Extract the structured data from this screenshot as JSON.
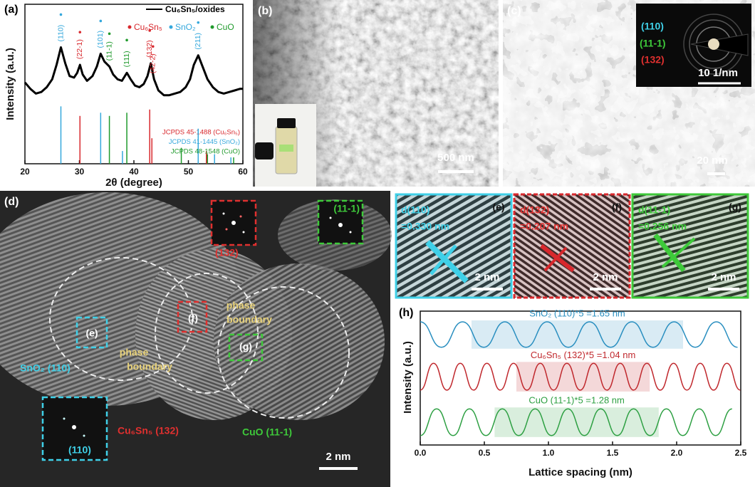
{
  "chart_data": [
    {
      "type": "line",
      "panel": "(a)",
      "x_label": "2θ (degree)",
      "y_label": "Intensity (a.u.)",
      "x": [
        20,
        21,
        22,
        23,
        24,
        25,
        25.8,
        26.6,
        27.4,
        28.2,
        29,
        29.6,
        30.1,
        30.6,
        31.4,
        32.4,
        33.2,
        33.9,
        34.6,
        35.5,
        36.2,
        37,
        37.8,
        38.7,
        39.4,
        40.2,
        41,
        41.8,
        42.5,
        43.1,
        43.7,
        44.5,
        45.5,
        46.5,
        47.5,
        48.5,
        49.5,
        50.3,
        51,
        51.8,
        52.6,
        53.5,
        54.5,
        55.5,
        56.5,
        57.5,
        58.5,
        59.5,
        60
      ],
      "series": [
        {
          "name": "Cu₆Sn₅/oxides",
          "color": "#000000",
          "values": [
            51,
            47,
            44,
            45,
            48,
            53,
            62,
            73,
            63,
            55,
            54,
            57,
            62,
            56,
            52,
            55,
            61,
            69,
            64,
            61,
            56,
            53,
            52,
            57,
            53,
            49,
            48,
            50,
            55,
            63,
            53,
            46,
            43,
            43,
            44,
            45,
            48,
            53,
            62,
            68,
            61,
            53,
            48,
            45,
            44,
            45,
            46,
            47,
            47
          ]
        }
      ],
      "phases": [
        {
          "name": "Cu₆Sn₅",
          "color": "#d8282d"
        },
        {
          "name": "SnO₂",
          "color": "#35a8dc"
        },
        {
          "name": "CuO",
          "color": "#1f9a2c"
        }
      ],
      "peaks": [
        {
          "label": "(110)",
          "x": 26.6,
          "color": "#35a8dc"
        },
        {
          "label": "(22-1)",
          "x": 30.1,
          "color": "#d8282d"
        },
        {
          "label": "(101)",
          "x": 33.9,
          "color": "#35a8dc"
        },
        {
          "label": "(11-1)",
          "x": 35.5,
          "color": "#1f9a2c"
        },
        {
          "label": "(111)",
          "x": 38.7,
          "color": "#1f9a2c"
        },
        {
          "label": "(132)",
          "x": 42.9,
          "color": "#d8282d"
        },
        {
          "label": "(42-2)",
          "x": 43.5,
          "color": "#d8282d"
        },
        {
          "label": "(211)",
          "x": 51.8,
          "color": "#35a8dc"
        }
      ],
      "reference_patterns": [
        {
          "name": "JCPDS 45-1488 (Cu₆Sn₅)",
          "color": "#d8282d",
          "positions": [
            30.1,
            42.9,
            43.3,
            53.3
          ],
          "heights": [
            30,
            34,
            16,
            8
          ]
        },
        {
          "name": "JCPDS 41-1445 (SnO₂)",
          "color": "#35a8dc",
          "positions": [
            26.6,
            33.9,
            37.9,
            51.8,
            54.8,
            57.8
          ],
          "heights": [
            36,
            32,
            8,
            22,
            6,
            4
          ]
        },
        {
          "name": "JCPDS 48-1548 (CuO)",
          "color": "#1f9a2c",
          "positions": [
            35.5,
            38.7,
            48.7,
            53.5,
            58.3
          ],
          "heights": [
            30,
            32,
            10,
            6,
            4
          ]
        }
      ],
      "xlim": [
        20,
        60
      ],
      "xticks": [
        20,
        30,
        40,
        50,
        60
      ],
      "ylim": [
        0,
        100
      ]
    },
    {
      "type": "line",
      "panel": "(h)",
      "x_label": "Lattice spacing (nm)",
      "y_label": "Intensity (a.u.)",
      "series": [
        {
          "name": "SnO₂",
          "color": "#2a8fc0",
          "annotation": "SnO₂ (110)*5 =1.65 nm",
          "highlight": [
            0.4,
            2.05
          ],
          "x": [
            0,
            0.165,
            0.33,
            0.495,
            0.66,
            0.825,
            0.99,
            1.155,
            1.32,
            1.485,
            1.65,
            1.815,
            1.98,
            2.145,
            2.31,
            2.475
          ],
          "values": [
            9.2,
            7.3,
            9.2,
            7.3,
            9.2,
            7.3,
            9.2,
            7.3,
            9.2,
            7.3,
            9.2,
            7.3,
            9.2,
            7.3,
            9.2,
            7.3
          ]
        },
        {
          "name": "Cu₆Sn₅",
          "color": "#c0282d",
          "annotation": "Cu₆Sn₅ (132)*5 =1.04 nm",
          "highlight": [
            0.75,
            1.79
          ],
          "x": [
            0,
            0.104,
            0.208,
            0.312,
            0.416,
            0.52,
            0.624,
            0.728,
            0.832,
            0.936,
            1.04,
            1.144,
            1.248,
            1.352,
            1.456,
            1.56,
            1.664,
            1.768,
            1.872,
            1.976,
            2.08,
            2.184,
            2.288,
            2.392,
            2.496
          ],
          "values": [
            4.1,
            6.1,
            4.1,
            6.1,
            4.1,
            6.1,
            4.1,
            6.1,
            4.1,
            6.1,
            4.1,
            6.1,
            4.1,
            6.1,
            4.1,
            6.1,
            4.1,
            6.1,
            4.1,
            6.1,
            4.1,
            6.1,
            4.1,
            6.1,
            4.1
          ]
        },
        {
          "name": "CuO",
          "color": "#2ea043",
          "annotation": "CuO (11-1)*5 =1.28 nm",
          "highlight": [
            0.58,
            1.86
          ],
          "x": [
            0,
            0.128,
            0.256,
            0.384,
            0.512,
            0.64,
            0.768,
            0.896,
            1.024,
            1.152,
            1.28,
            1.408,
            1.536,
            1.664,
            1.792,
            1.92,
            2.048,
            2.176,
            2.304,
            2.432
          ],
          "values": [
            0.7,
            2.7,
            0.7,
            2.7,
            0.7,
            2.7,
            0.7,
            2.7,
            0.7,
            2.7,
            0.7,
            2.7,
            0.7,
            2.7,
            0.7,
            2.7,
            0.7,
            2.7,
            0.7,
            2.7
          ]
        }
      ],
      "xlim": [
        0,
        2.5
      ],
      "xticks": [
        {
          "value": 0,
          "label": "0.0"
        },
        0.5,
        {
          "value": 1,
          "label": "1.0"
        },
        1.5,
        {
          "value": 2,
          "label": "2.0"
        },
        2.5
      ],
      "ylim": [
        0,
        10
      ]
    }
  ],
  "panels": {
    "b": {
      "label": "(b)",
      "scale_bar": "500 nm"
    },
    "c": {
      "label": "(c)",
      "scale_bar": "20 nm",
      "inset": {
        "rings": [
          "(110)",
          "(11-1)",
          "(132)"
        ],
        "scale_bar": "10 1/nm"
      }
    },
    "d": {
      "label": "(d)",
      "fft_labels": [
        "(132)",
        "(11-1)",
        "(110)"
      ],
      "region_labels": [
        "(e)",
        "(f)",
        "(g)"
      ],
      "boundary_labels": [
        [
          "phase",
          "boundary"
        ],
        [
          "phase",
          "boundary"
        ]
      ],
      "phase_labels": [
        "SnO₂ (110)",
        "Cu₆Sn₅ (132)",
        "CuO (11-1)"
      ],
      "scale_bar": "2 nm"
    },
    "lattice": [
      {
        "label": "(e)",
        "spacing": [
          "d(110)",
          "=0.330 nm"
        ],
        "scale_bar": "2 nm"
      },
      {
        "label": "(f)",
        "spacing": [
          "d(132)",
          "=0.207 nm"
        ],
        "scale_bar": "2 nm"
      },
      {
        "label": "(g)",
        "spacing": [
          "d(11-1)",
          "=0.256 nm"
        ],
        "scale_bar": "2 nm"
      }
    ]
  }
}
